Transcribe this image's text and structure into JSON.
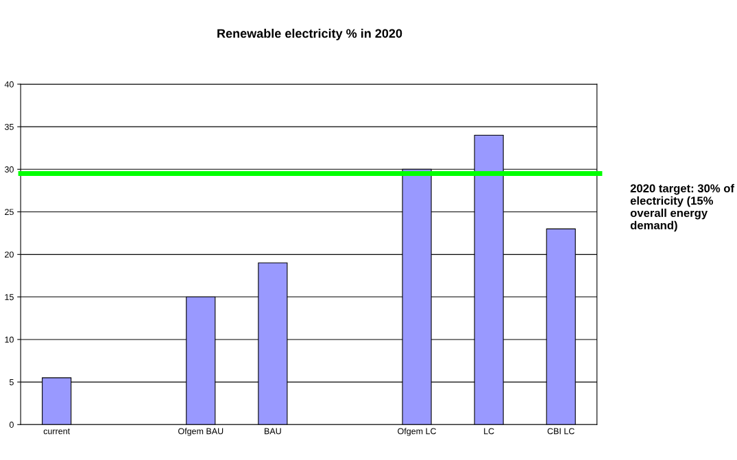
{
  "chart_data": {
    "type": "bar",
    "title": "Renewable electricity % in 2020",
    "categories": [
      "current",
      null,
      "Ofgem BAU",
      "BAU",
      null,
      "Ofgem LC",
      "LC",
      "CBI LC"
    ],
    "values": [
      5.5,
      null,
      15,
      19,
      null,
      30,
      34,
      23
    ],
    "color": "#9999ff",
    "ylim": [
      0,
      40
    ],
    "yticks": [
      0,
      5,
      10,
      15,
      20,
      25,
      30,
      35,
      40
    ],
    "grid": "y",
    "ref_lines": [
      {
        "axis": "y",
        "value": 29.5,
        "color": "#00ff00",
        "line_style": "solid"
      }
    ],
    "annotations": [
      "2020 target: 30% of electricity (15% overall energy demand)"
    ]
  }
}
